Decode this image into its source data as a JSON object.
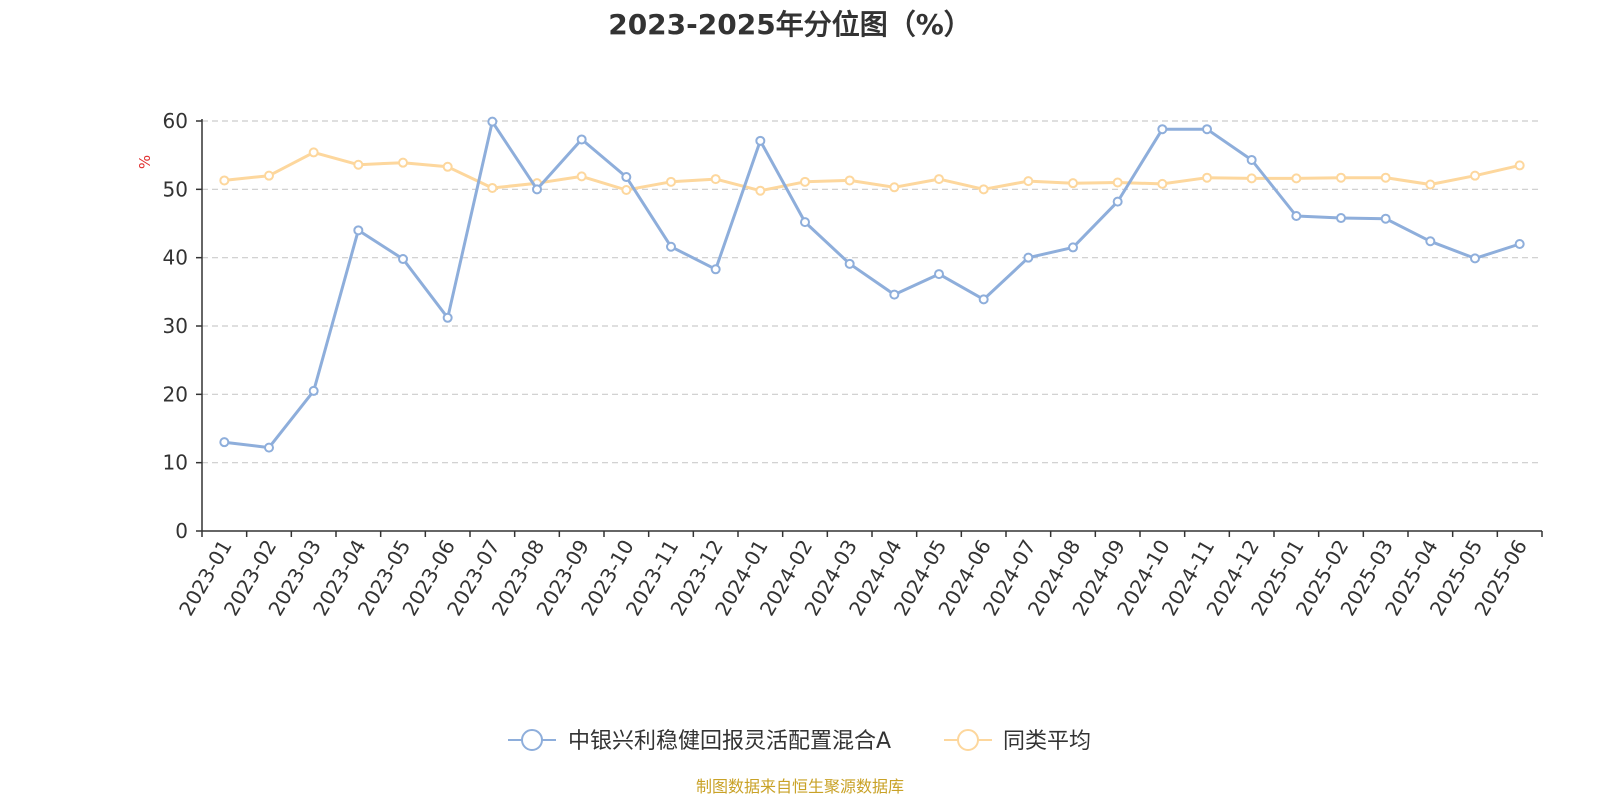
{
  "chart_data": {
    "type": "line",
    "title": "2023-2025年分位图（%）",
    "ylabel": "%",
    "xlabel": "",
    "ylim": [
      0,
      60
    ],
    "yticks": [
      0,
      10,
      20,
      30,
      40,
      50,
      60
    ],
    "grid": true,
    "legend_position": "bottom-center",
    "categories": [
      "2023-01",
      "2023-02",
      "2023-03",
      "2023-04",
      "2023-05",
      "2023-06",
      "2023-07",
      "2023-08",
      "2023-09",
      "2023-10",
      "2023-11",
      "2023-12",
      "2024-01",
      "2024-02",
      "2024-03",
      "2024-04",
      "2024-05",
      "2024-06",
      "2024-07",
      "2024-08",
      "2024-09",
      "2024-10",
      "2024-11",
      "2024-12",
      "2025-01",
      "2025-02",
      "2025-03",
      "2025-04",
      "2025-05",
      "2025-06"
    ],
    "series": [
      {
        "name": "中银兴利稳健回报灵活配置混合A",
        "color": "#8eaedb",
        "values": [
          13.0,
          12.2,
          20.5,
          44.0,
          39.8,
          31.2,
          59.9,
          50.0,
          57.3,
          51.8,
          41.6,
          38.3,
          57.1,
          45.2,
          39.1,
          34.6,
          37.6,
          33.9,
          40.0,
          41.5,
          48.2,
          58.8,
          58.8,
          54.3,
          46.1,
          45.8,
          45.7,
          42.4,
          39.9,
          42.0
        ]
      },
      {
        "name": "同类平均",
        "color": "#fdd79d",
        "values": [
          51.3,
          52.0,
          55.4,
          53.6,
          53.9,
          53.3,
          50.2,
          50.9,
          51.9,
          49.9,
          51.1,
          51.5,
          49.8,
          51.1,
          51.3,
          50.3,
          51.5,
          50.0,
          51.2,
          50.9,
          51.0,
          50.8,
          51.7,
          51.6,
          51.6,
          51.7,
          51.7,
          50.7,
          52.0,
          53.5
        ]
      }
    ]
  },
  "colors": {
    "axis": "#333333",
    "grid": "#cccccc",
    "ylabel": "#e03030",
    "source": "#c9a227"
  },
  "source_text": "制图数据来自恒生聚源数据库"
}
